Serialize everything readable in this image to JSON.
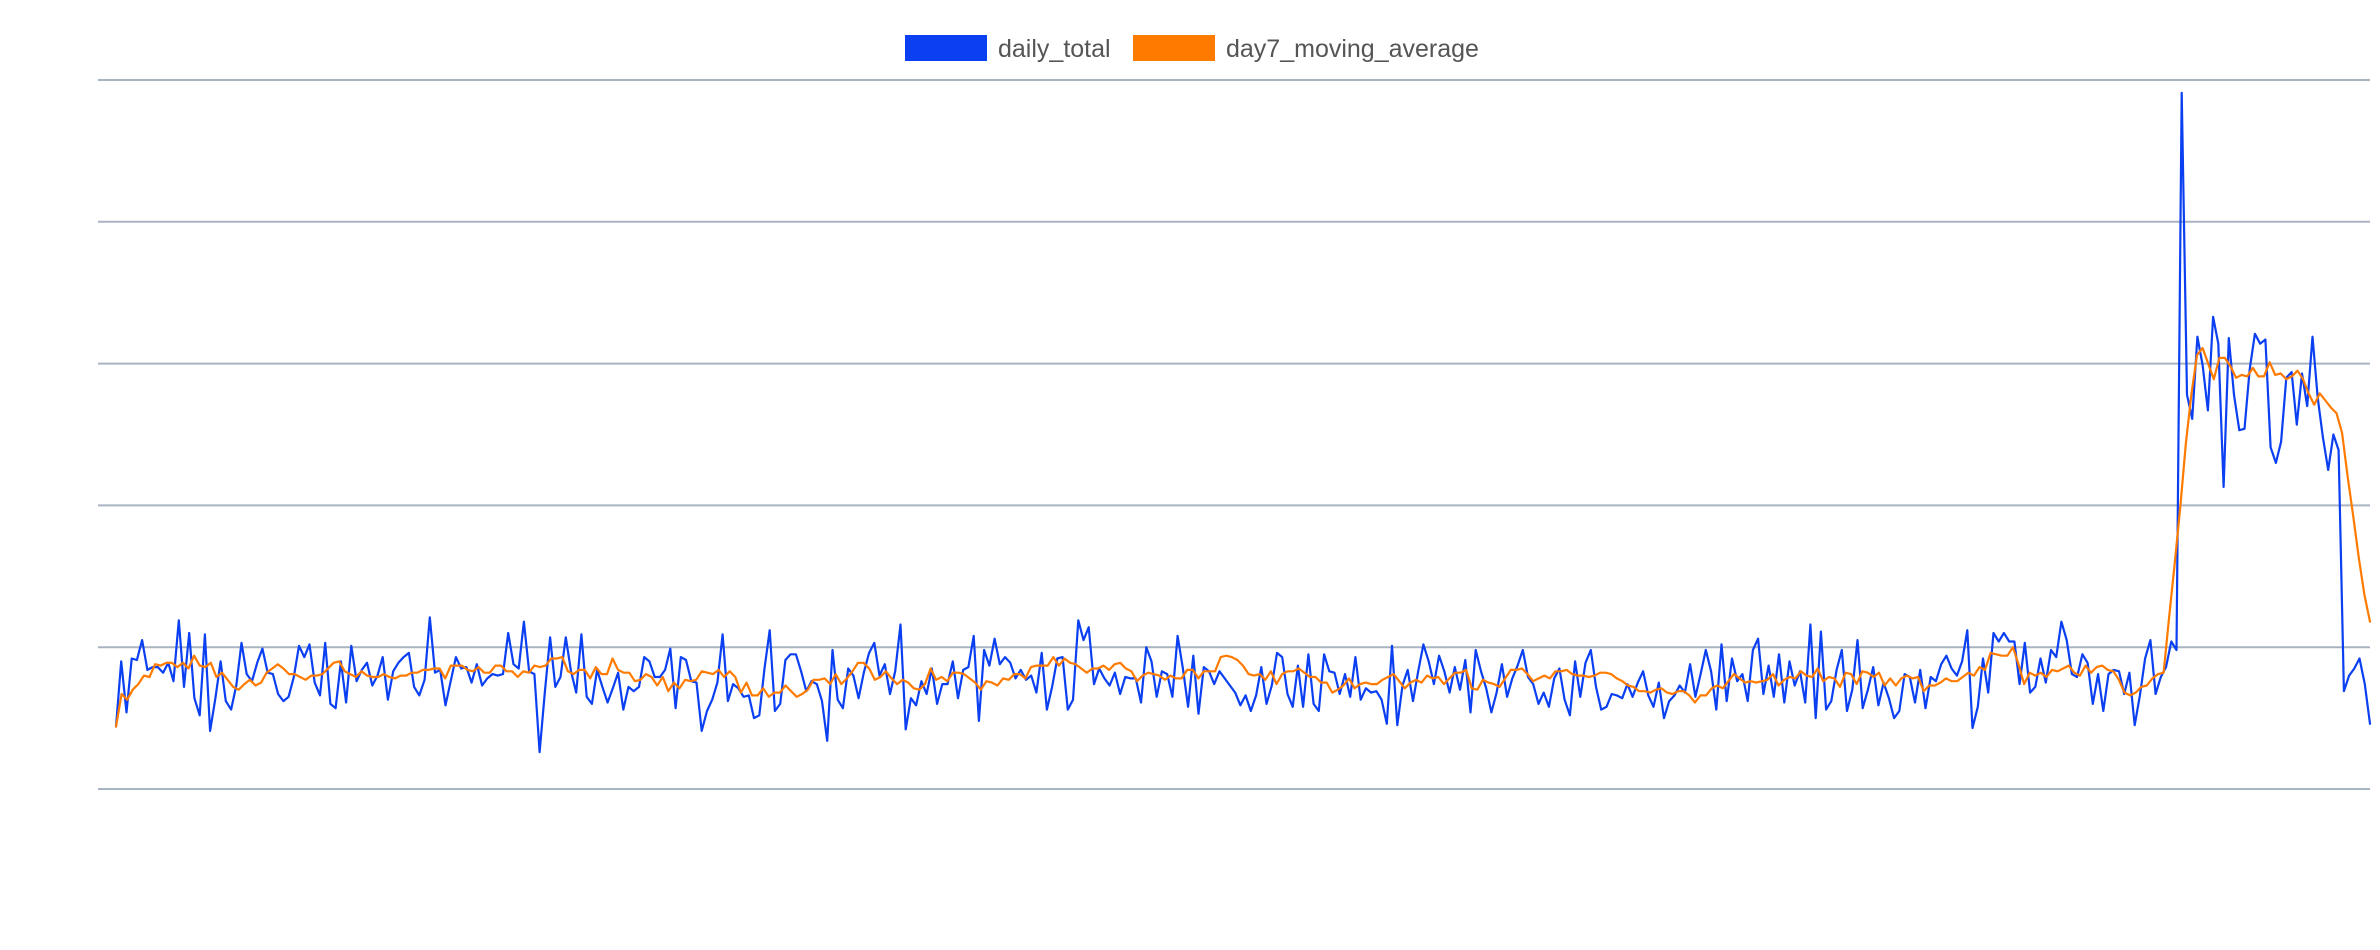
{
  "chart_data": {
    "type": "line",
    "title": "",
    "xlabel": "",
    "ylabel": "",
    "ylim": [
      0,
      50
    ],
    "grid": true,
    "legend_position": "top-center",
    "series": [
      {
        "name": "daily_total",
        "color": "#0a3ff2",
        "values": [
          4.4,
          9.0,
          5.4,
          9.2,
          9.1,
          10.5,
          8.4,
          8.6,
          8.6,
          8.2,
          8.9,
          7.6,
          11.9,
          7.2,
          11.0,
          6.4,
          5.2,
          10.9,
          4.1,
          6.4,
          9.0,
          6.2,
          5.6,
          7.3,
          10.3,
          8.1,
          7.6,
          8.9,
          9.9,
          8.2,
          8.1,
          6.7,
          6.2,
          6.5,
          7.9,
          10.1,
          9.3,
          10.2,
          7.5,
          6.6,
          10.3,
          6.0,
          5.7,
          9.0,
          6.1,
          10.1,
          7.6,
          8.4,
          8.9,
          7.3,
          8.0,
          9.3,
          6.3,
          8.3,
          8.9,
          9.3,
          9.6,
          7.2,
          6.6,
          7.7,
          12.1,
          8.2,
          8.4,
          5.9,
          7.6,
          9.3,
          8.5,
          8.6,
          7.5,
          8.8,
          7.3,
          7.8,
          8.1,
          8.0,
          8.1,
          11.0,
          8.8,
          8.5,
          11.8,
          8.3,
          8.1,
          2.6,
          6.8,
          10.7,
          7.2,
          7.9,
          10.7,
          8.3,
          6.8,
          10.9,
          6.5,
          6.0,
          8.4,
          7.2,
          6.1,
          7.1,
          8.2,
          5.6,
          7.2,
          6.9,
          7.2,
          9.3,
          9.0,
          7.9,
          7.9,
          8.4,
          9.9,
          5.7,
          9.3,
          9.1,
          7.6,
          7.5,
          4.1,
          5.5,
          6.3,
          7.5,
          10.9,
          6.2,
          7.4,
          7.1,
          6.5,
          6.6,
          5.0,
          5.2,
          8.5,
          11.2,
          5.5,
          6.0,
          9.1,
          9.5,
          9.5,
          8.3,
          6.9,
          7.6,
          7.4,
          6.2,
          3.4,
          9.8,
          6.3,
          5.7,
          8.5,
          8.0,
          6.4,
          8.2,
          9.6,
          10.3,
          8.0,
          8.8,
          6.7,
          8.3,
          11.6,
          4.2,
          6.4,
          5.9,
          7.6,
          6.7,
          8.5,
          6.0,
          7.4,
          7.4,
          9.0,
          6.4,
          8.4,
          8.6,
          10.8,
          4.8,
          9.8,
          8.7,
          10.6,
          8.8,
          9.3,
          8.9,
          7.8,
          8.4,
          7.7,
          8.0,
          6.8,
          9.6,
          5.6,
          7.2,
          9.2,
          9.3,
          5.6,
          6.3,
          11.9,
          10.5,
          11.4,
          7.4,
          8.5,
          7.8,
          7.3,
          8.2,
          6.7,
          7.9,
          7.8,
          7.8,
          6.1,
          10.0,
          9.0,
          6.5,
          8.3,
          8.1,
          6.5,
          10.8,
          8.5,
          5.8,
          9.4,
          5.3,
          8.6,
          8.3,
          7.4,
          8.3,
          7.8,
          7.3,
          6.8,
          5.9,
          6.6,
          5.5,
          6.6,
          8.6,
          6.0,
          7.3,
          9.6,
          9.3,
          6.7,
          5.8,
          8.7,
          5.8,
          9.5,
          6.0,
          5.5,
          9.5,
          8.3,
          8.2,
          6.7,
          8.1,
          6.5,
          9.3,
          6.3,
          7.1,
          6.8,
          6.9,
          6.3,
          4.6,
          10.1,
          4.5,
          7.3,
          8.4,
          6.2,
          8.3,
          10.2,
          9.0,
          7.4,
          9.4,
          8.3,
          6.8,
          8.6,
          7.0,
          9.1,
          5.4,
          9.8,
          8.3,
          7.1,
          5.4,
          6.8,
          8.8,
          6.5,
          7.8,
          8.7,
          9.8,
          7.9,
          7.4,
          6.0,
          6.8,
          5.8,
          7.8,
          8.5,
          6.3,
          5.2,
          9.0,
          6.5,
          8.9,
          9.8,
          7.2,
          5.6,
          5.8,
          6.7,
          6.6,
          6.4,
          7.4,
          6.5,
          7.5,
          8.3,
          6.6,
          5.8,
          7.5,
          5.0,
          6.2,
          6.6,
          7.3,
          6.8,
          8.8,
          6.5,
          8.1,
          9.8,
          8.3,
          5.6,
          10.2,
          6.2,
          9.2,
          7.6,
          8.1,
          6.2,
          9.8,
          10.6,
          6.7,
          8.7,
          6.5,
          9.5,
          6.1,
          9.0,
          7.3,
          8.3,
          6.1,
          11.6,
          5.0,
          11.1,
          5.6,
          6.2,
          8.4,
          9.8,
          5.5,
          7.0,
          10.5,
          5.7,
          7.0,
          8.6,
          5.9,
          7.5,
          6.4,
          5.0,
          5.5,
          8.1,
          7.9,
          6.1,
          8.4,
          5.7,
          7.9,
          7.6,
          8.8,
          9.4,
          8.5,
          8.0,
          9.0,
          11.2,
          4.3,
          5.8,
          9.2,
          6.8,
          11.0,
          10.4,
          11.0,
          10.4,
          10.4,
          7.4,
          10.3,
          6.8,
          7.2,
          9.2,
          7.5,
          9.8,
          9.3,
          11.8,
          10.5,
          8.1,
          7.9,
          9.5,
          8.9,
          6.0,
          8.1,
          5.5,
          8.1,
          8.4,
          8.3,
          6.7,
          8.2,
          4.5,
          6.6,
          9.2,
          10.5,
          6.7,
          7.9,
          8.6,
          10.4,
          9.8,
          49.1,
          27.8,
          26.1,
          31.9,
          29.9,
          26.7,
          33.3,
          31.4,
          21.3,
          31.8,
          27.8,
          25.3,
          25.4,
          29.6,
          32.1,
          31.4,
          31.7,
          24.1,
          23.0,
          24.5,
          29.0,
          29.4,
          25.7,
          29.3,
          27.0,
          31.9,
          27.6,
          24.8,
          22.5,
          25.0,
          23.9,
          6.9,
          8.0,
          8.5,
          9.2,
          7.4,
          4.6
        ]
      },
      {
        "name": "day7_moving_average",
        "color": "#ff7b00",
        "values": [
          4.4,
          6.7,
          6.3,
          7.0,
          7.4,
          8.0,
          7.9,
          8.8,
          8.7,
          8.9,
          8.9,
          8.6,
          8.9,
          8.5,
          9.4,
          8.7,
          8.6,
          8.9,
          7.9,
          8.2,
          7.7,
          7.2,
          7.0,
          7.4,
          7.7,
          7.3,
          7.5,
          8.2,
          8.5,
          8.8,
          8.5,
          8.1,
          8.1,
          7.9,
          7.7,
          8.0,
          8.0,
          8.1,
          8.5,
          8.9,
          9.0,
          8.3,
          8.1,
          7.9,
          8.3,
          8.0,
          7.9,
          7.9,
          8.1,
          7.9,
          7.8,
          8.0,
          8.0,
          8.2,
          8.2,
          8.4,
          8.4,
          8.5,
          8.5,
          7.8,
          8.7,
          8.7,
          8.7,
          8.4,
          8.3,
          8.6,
          8.2,
          8.2,
          8.7,
          8.7,
          8.3,
          8.3,
          7.9,
          8.3,
          8.2,
          8.7,
          8.6,
          8.7,
          9.2,
          9.2,
          9.3,
          8.3,
          8.1,
          8.4,
          8.4,
          7.8,
          8.6,
          8.1,
          8.1,
          9.2,
          8.4,
          8.2,
          8.2,
          7.6,
          7.7,
          8.1,
          7.9,
          7.3,
          7.9,
          6.9,
          7.5,
          7.1,
          7.7,
          7.6,
          7.7,
          8.3,
          8.2,
          8.1,
          8.4,
          7.9,
          8.3,
          7.9,
          6.8,
          7.5,
          6.6,
          6.6,
          7.1,
          6.5,
          6.8,
          6.8,
          7.3,
          6.9,
          6.5,
          6.7,
          7.0,
          7.7,
          7.7,
          7.8,
          7.4,
          8.1,
          7.4,
          7.8,
          8.3,
          8.9,
          8.9,
          8.5,
          7.7,
          7.9,
          8.3,
          7.8,
          7.4,
          7.7,
          7.5,
          7.1,
          7.0,
          7.4,
          8.5,
          7.7,
          7.9,
          7.6,
          8.2,
          8.2,
          8.1,
          7.8,
          7.5,
          7.0,
          7.6,
          7.5,
          7.3,
          7.8,
          7.7,
          8.1,
          8.1,
          7.8,
          8.6,
          8.7,
          8.7,
          8.7,
          9.3,
          8.7,
          9.2,
          8.9,
          8.8,
          8.5,
          8.2,
          8.5,
          8.5,
          8.7,
          8.4,
          8.8,
          8.9,
          8.5,
          8.3,
          7.6,
          8.0,
          8.2,
          8.1,
          8.0,
          7.7,
          8.0,
          7.8,
          7.8,
          8.4,
          8.4,
          7.8,
          8.3,
          8.3,
          8.3,
          9.3,
          9.4,
          9.3,
          9.1,
          8.7,
          8.1,
          8.0,
          8.1,
          7.7,
          8.3,
          7.4,
          8.1,
          8.3,
          8.3,
          8.5,
          8.2,
          7.9,
          7.9,
          7.5,
          7.5,
          6.8,
          7.0,
          7.3,
          7.8,
          7.1,
          7.4,
          7.5,
          7.4,
          7.4,
          7.7,
          7.9,
          8.1,
          7.6,
          7.1,
          7.5,
          7.7,
          7.5,
          8.0,
          7.8,
          7.9,
          7.4,
          7.8,
          8.2,
          8.2,
          8.4,
          7.1,
          7.0,
          7.7,
          7.5,
          7.4,
          7.2,
          7.8,
          8.4,
          8.4,
          8.5,
          8.1,
          7.6,
          7.8,
          8.0,
          7.8,
          8.3,
          8.3,
          8.4,
          8.1,
          8.0,
          8.0,
          7.9,
          8.0,
          8.2,
          8.2,
          8.1,
          7.8,
          7.6,
          7.3,
          7.2,
          6.9,
          6.9,
          6.8,
          7.0,
          7.1,
          6.8,
          6.7,
          6.9,
          6.9,
          6.6,
          6.1,
          6.6,
          6.6,
          7.1,
          7.3,
          7.1,
          7.6,
          8.1,
          7.8,
          7.5,
          7.6,
          7.5,
          7.6,
          7.7,
          8.1,
          7.3,
          7.7,
          7.9,
          7.8,
          8.3,
          8.0,
          7.9,
          8.5,
          7.6,
          7.9,
          7.8,
          7.2,
          8.2,
          8.1,
          7.4,
          8.3,
          8.2,
          7.9,
          8.2,
          7.3,
          7.8,
          7.3,
          7.8,
          8.0,
          7.8,
          7.9,
          6.9,
          7.3,
          7.3,
          7.5,
          7.8,
          7.6,
          7.6,
          7.9,
          8.2,
          8.0,
          8.6,
          8.4,
          9.6,
          9.5,
          9.4,
          9.4,
          10.0,
          8.8,
          7.4,
          8.2,
          8.0,
          8.2,
          7.9,
          8.4,
          8.3,
          8.5,
          8.7,
          8.2,
          8.0,
          8.7,
          8.2,
          8.6,
          8.7,
          8.4,
          8.3,
          7.7,
          6.8,
          6.6,
          6.8,
          7.2,
          7.3,
          7.8,
          8.1,
          8.2,
          12.1,
          15.9,
          19.9,
          24.4,
          27.9,
          30.6,
          31.1,
          30.0,
          28.9,
          30.4,
          30.4,
          29.8,
          29.0,
          29.2,
          29.1,
          29.7,
          29.1,
          29.1,
          30.1,
          29.2,
          29.3,
          28.9,
          29.1,
          29.5,
          28.9,
          27.9,
          27.1,
          27.9,
          27.4,
          26.9,
          26.5,
          25.1,
          22.0,
          19.2,
          16.3,
          13.7,
          11.8
        ]
      }
    ]
  }
}
